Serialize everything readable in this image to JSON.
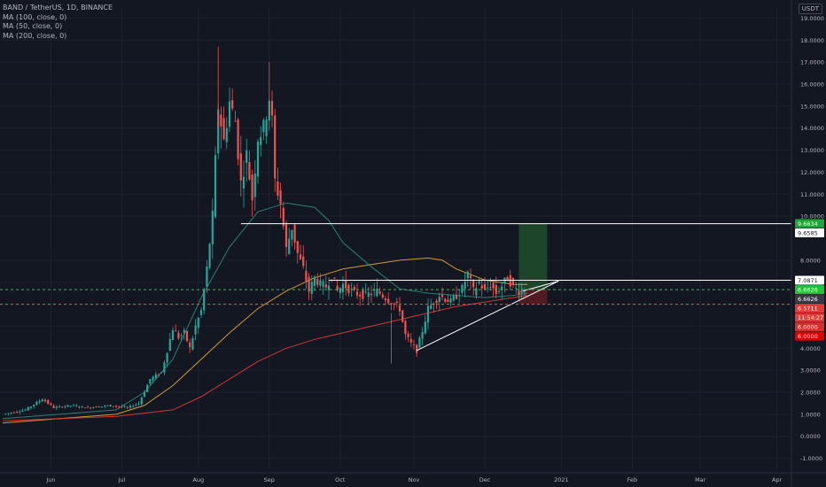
{
  "header": {
    "symbol": "BAND / TetherUS, 1D, BINANCE",
    "indicators": [
      "MA (100, close, 0)",
      "MA (50, close, 0)",
      "MA (200, close, 0)"
    ],
    "currency": "USDT"
  },
  "colors": {
    "background": "#131722",
    "up": "#26a69a",
    "down": "#ef5350",
    "ma100": "#e8a63a",
    "ma50": "#2e8b7a",
    "ma200": "#e53935",
    "target_zone": "#1e4d2b",
    "stop_zone": "#5e1e22",
    "resistance_line": "#ffffff",
    "entry_line": "#4caf50",
    "stop_line": "#ef5350"
  },
  "chart_data": {
    "type": "candlestick",
    "y_range": [
      -1.5,
      19.5
    ],
    "y_ticks": [
      "19.0000",
      "18.0000",
      "17.0000",
      "16.0000",
      "15.0000",
      "14.0000",
      "13.0000",
      "12.0000",
      "11.0000",
      "10.0000",
      "8.0000",
      "7.0000",
      "5.0000",
      "4.0000",
      "3.0000",
      "2.0000",
      "1.0000",
      "0.0000",
      "-1.0000"
    ],
    "y_tick_values": [
      19,
      18,
      17,
      16,
      15,
      14,
      13,
      12,
      11,
      10,
      8,
      7,
      5,
      4,
      3,
      2,
      1,
      0,
      -1
    ],
    "x_ticks": [
      "Jun",
      "Jul",
      "Aug",
      "Sep",
      "Oct",
      "Nov",
      "Dec",
      "2021",
      "Feb",
      "Mar",
      "Apr"
    ],
    "price_tags": [
      {
        "label": "9.6634",
        "value": 9.6634,
        "bg": "#22a33a",
        "fg": "#ffffff"
      },
      {
        "label": "9.6585",
        "value": 9.6585,
        "bg": "#ffffff",
        "fg": "#131722"
      },
      {
        "label": "7.0871",
        "value": 7.0871,
        "bg": "#ffffff",
        "fg": "#131722"
      },
      {
        "label": "6.6626",
        "value": 6.6626,
        "bg": "#22c33a",
        "fg": "#ffffff"
      },
      {
        "label": "6.6626",
        "value": 6.6626,
        "bg": "#363a45",
        "fg": "#ffffff"
      },
      {
        "label": "6.5711",
        "value": 6.5711,
        "bg": "#e53935",
        "fg": "#ffffff"
      },
      {
        "label": "11:54:27",
        "value": 6.5711,
        "bg": "#e53935",
        "fg": "#ffffff"
      },
      {
        "label": "6.0000",
        "value": 6.0,
        "bg": "#d32f2f",
        "fg": "#ffffff"
      },
      {
        "label": "6.0000",
        "value": 6.0,
        "bg": "#e00000",
        "fg": "#ffffff"
      }
    ],
    "annotations": {
      "resistance_high": {
        "value": 9.6585,
        "from_day": 84,
        "to_day": 275
      },
      "resistance_low": {
        "value": 7.0871,
        "from_day": 115,
        "to_day": 275
      },
      "support_trendline": {
        "from_day": 146,
        "from_value": 3.9,
        "to_day": 196,
        "to_value": 7.05
      },
      "entry_level": 6.6626,
      "stop_level": 6.0,
      "target_level": 9.6634,
      "position_from_day": 182,
      "position_to_day": 192
    },
    "series": [
      {
        "name": "MA (100, close, 0)",
        "points": [
          [
            0,
            0.6
          ],
          [
            20,
            0.8
          ],
          [
            40,
            1.0
          ],
          [
            50,
            1.4
          ],
          [
            60,
            2.3
          ],
          [
            70,
            3.5
          ],
          [
            80,
            4.7
          ],
          [
            90,
            5.8
          ],
          [
            100,
            6.6
          ],
          [
            110,
            7.2
          ],
          [
            120,
            7.6
          ],
          [
            130,
            7.8
          ],
          [
            140,
            8.0
          ],
          [
            150,
            8.1
          ],
          [
            155,
            8.0
          ],
          [
            160,
            7.6
          ],
          [
            170,
            7.1
          ],
          [
            180,
            6.9
          ],
          [
            185,
            6.9
          ]
        ]
      },
      {
        "name": "MA (50, close, 0)",
        "points": [
          [
            0,
            0.8
          ],
          [
            20,
            1.0
          ],
          [
            40,
            1.2
          ],
          [
            50,
            2.0
          ],
          [
            60,
            3.5
          ],
          [
            70,
            6.3
          ],
          [
            80,
            8.6
          ],
          [
            90,
            10.2
          ],
          [
            100,
            10.6
          ],
          [
            110,
            10.4
          ],
          [
            115,
            9.8
          ],
          [
            120,
            8.8
          ],
          [
            130,
            7.7
          ],
          [
            140,
            6.7
          ],
          [
            150,
            6.5
          ],
          [
            160,
            6.4
          ],
          [
            170,
            6.3
          ],
          [
            180,
            6.4
          ],
          [
            185,
            6.5
          ]
        ]
      },
      {
        "name": "MA (200, close, 0)",
        "points": [
          [
            0,
            0.7
          ],
          [
            40,
            0.9
          ],
          [
            60,
            1.2
          ],
          [
            70,
            1.8
          ],
          [
            80,
            2.6
          ],
          [
            90,
            3.4
          ],
          [
            100,
            4.0
          ],
          [
            110,
            4.4
          ],
          [
            120,
            4.7
          ],
          [
            130,
            5.0
          ],
          [
            140,
            5.3
          ],
          [
            150,
            5.6
          ],
          [
            160,
            5.9
          ],
          [
            170,
            6.1
          ],
          [
            180,
            6.3
          ],
          [
            185,
            6.4
          ]
        ]
      }
    ],
    "candles_ohlc_keypoints": [
      [
        0,
        1.0
      ],
      [
        8,
        1.2
      ],
      [
        14,
        1.7
      ],
      [
        18,
        1.3
      ],
      [
        24,
        1.4
      ],
      [
        30,
        1.3
      ],
      [
        38,
        1.4
      ],
      [
        44,
        1.3
      ],
      [
        48,
        1.5
      ],
      [
        52,
        2.6
      ],
      [
        56,
        2.9
      ],
      [
        60,
        4.9
      ],
      [
        62,
        4.5
      ],
      [
        64,
        4.7
      ],
      [
        66,
        4.0
      ],
      [
        68,
        5.0
      ],
      [
        70,
        5.7
      ],
      [
        72,
        7.6
      ],
      [
        74,
        10.0
      ],
      [
        76,
        15.0
      ],
      [
        78,
        13.4
      ],
      [
        80,
        15.2
      ],
      [
        82,
        14.3
      ],
      [
        84,
        11.5
      ],
      [
        86,
        12.8
      ],
      [
        88,
        10.8
      ],
      [
        90,
        13.6
      ],
      [
        92,
        14.0
      ],
      [
        94,
        15.4
      ],
      [
        95,
        14.3
      ],
      [
        96,
        11.6
      ],
      [
        98,
        10.6
      ],
      [
        100,
        8.5
      ],
      [
        102,
        9.5
      ],
      [
        104,
        8.3
      ],
      [
        106,
        7.6
      ],
      [
        108,
        6.6
      ],
      [
        110,
        7.2
      ],
      [
        112,
        6.9
      ],
      [
        114,
        6.8
      ],
      [
        116,
        7.3
      ],
      [
        118,
        6.6
      ],
      [
        120,
        6.9
      ],
      [
        124,
        6.5
      ],
      [
        128,
        6.4
      ],
      [
        132,
        6.6
      ],
      [
        136,
        6.2
      ],
      [
        140,
        5.8
      ],
      [
        142,
        4.6
      ],
      [
        144,
        4.2
      ],
      [
        146,
        3.9
      ],
      [
        148,
        4.8
      ],
      [
        150,
        5.8
      ],
      [
        154,
        6.4
      ],
      [
        158,
        6.1
      ],
      [
        162,
        6.7
      ],
      [
        164,
        7.4
      ],
      [
        166,
        6.6
      ],
      [
        168,
        7.0
      ],
      [
        170,
        6.6
      ],
      [
        172,
        6.9
      ],
      [
        174,
        6.5
      ],
      [
        178,
        7.2
      ],
      [
        180,
        6.8
      ],
      [
        182,
        6.6
      ],
      [
        184,
        6.66
      ]
    ]
  }
}
